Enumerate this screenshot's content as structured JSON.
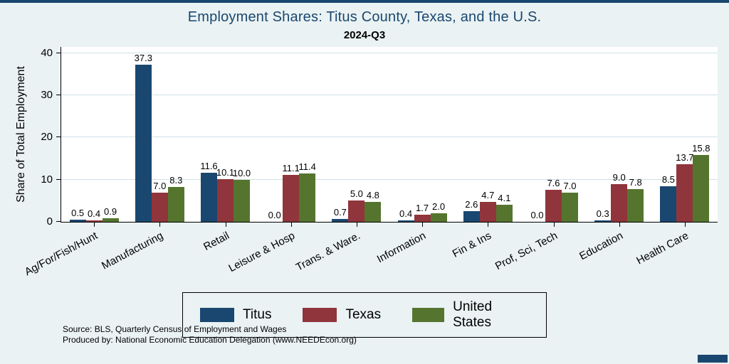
{
  "title": "Employment Shares: Titus County, Texas, and the U.S.",
  "subtitle": "2024-Q3",
  "notes": [
    "Source: BLS, Quarterly Census of Employment and Wages",
    "Produced by: National Economic Education Delegation (www.NEEDEcon.org)"
  ],
  "colors": {
    "accent": "#1a476f",
    "background": "#eaf2f3",
    "plot_background": "#ffffff",
    "gridline": "#cfe1e6"
  },
  "chart_data": {
    "type": "bar",
    "title": "Employment Shares: Titus County, Texas, and the U.S.",
    "subtitle": "2024-Q3",
    "xlabel": "",
    "ylabel": "Share of Total Employment",
    "ylim": [
      0,
      40
    ],
    "yticks": [
      0,
      10,
      20,
      30,
      40
    ],
    "grid": true,
    "legend_position": "bottom",
    "categories": [
      "Ag/For/Fish/Hunt",
      "Manufacturing",
      "Retail",
      "Leisure & Hosp",
      "Trans. & Ware.",
      "Information",
      "Fin & Ins",
      "Prof, Sci, Tech",
      "Education",
      "Health Care"
    ],
    "series": [
      {
        "name": "Titus",
        "color": "#1a476f",
        "values": [
          0.5,
          37.3,
          11.6,
          0.0,
          0.7,
          0.4,
          2.6,
          0.0,
          0.3,
          8.5
        ]
      },
      {
        "name": "Texas",
        "color": "#90353b",
        "values": [
          0.4,
          7.0,
          10.1,
          11.1,
          5.0,
          1.7,
          4.7,
          7.6,
          9.0,
          13.7
        ]
      },
      {
        "name": "United States",
        "color": "#55752f",
        "values": [
          0.9,
          8.3,
          10.0,
          11.4,
          4.8,
          2.0,
          4.1,
          7.0,
          7.8,
          15.8
        ]
      }
    ]
  }
}
